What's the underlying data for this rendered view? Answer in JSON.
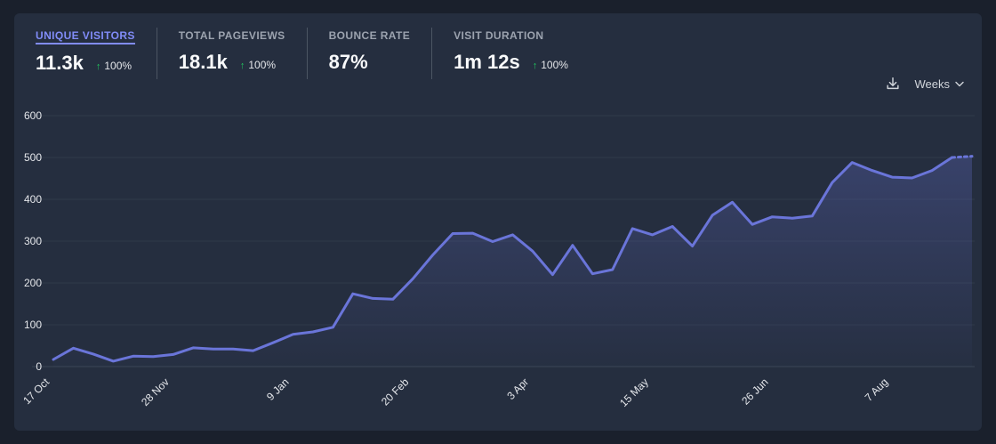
{
  "stats": [
    {
      "label": "UNIQUE VISITORS",
      "value": "11.3k",
      "change": "100%",
      "active": true
    },
    {
      "label": "TOTAL PAGEVIEWS",
      "value": "18.1k",
      "change": "100%",
      "active": false
    },
    {
      "label": "BOUNCE RATE",
      "value": "87%",
      "change": "",
      "active": false
    },
    {
      "label": "VISIT DURATION",
      "value": "1m 12s",
      "change": "100%",
      "active": false
    }
  ],
  "controls": {
    "download_icon": "download-icon",
    "interval_label": "Weeks",
    "chevron_icon": "chevron-down-icon"
  },
  "colors": {
    "line": "#6a75d9",
    "accent": "#818cf8",
    "positive": "#22c55e"
  },
  "chart_data": {
    "type": "area",
    "title": "",
    "xlabel": "",
    "ylabel": "",
    "ylim": [
      0,
      600
    ],
    "y_ticks": [
      0,
      100,
      200,
      300,
      400,
      500,
      600
    ],
    "x_tick_labels": [
      "17 Oct",
      "28 Nov",
      "9 Jan",
      "20 Feb",
      "3 Apr",
      "15 May",
      "26 Jun",
      "7 Aug"
    ],
    "x_tick_indices": [
      0,
      6,
      12,
      18,
      24,
      30,
      36,
      42
    ],
    "grid": true,
    "incomplete_last_point": true,
    "series": [
      {
        "values": [
          17,
          44,
          30,
          13,
          25,
          24,
          29,
          45,
          42,
          42,
          38,
          57,
          77,
          83,
          94,
          174,
          163,
          161,
          210,
          267,
          318,
          319,
          299,
          315,
          276,
          220,
          290,
          222,
          232,
          330,
          315,
          335,
          288,
          362,
          393,
          340,
          358,
          355,
          360,
          440,
          488,
          469,
          453,
          451,
          469,
          500,
          503
        ]
      }
    ]
  }
}
